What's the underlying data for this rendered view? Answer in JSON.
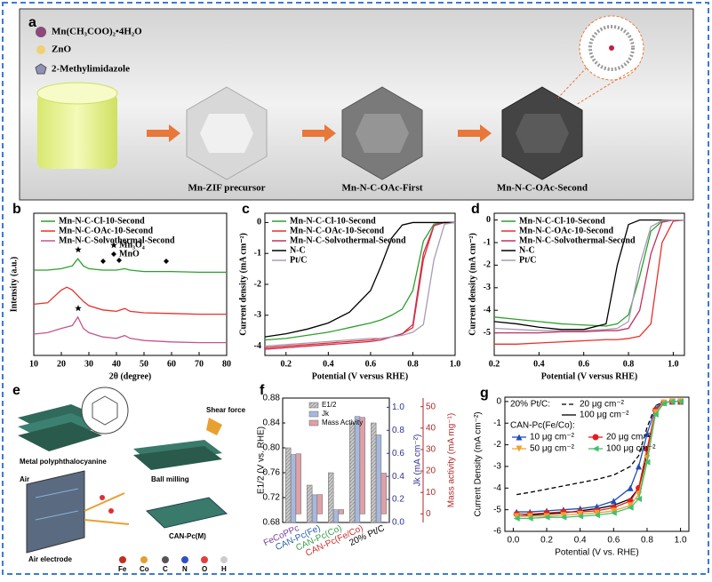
{
  "panels": {
    "a": {
      "label": "a",
      "legend": [
        "Mn(CH₃COO)₂•4H₂O",
        "ZnO",
        "2-Methylimidazole"
      ],
      "steps": [
        "Mn-ZIF precursor",
        "Mn-N-C-OAc-First",
        "Mn-N-C-OAc-Second"
      ]
    },
    "e": {
      "label": "e",
      "texts": {
        "polymer": "Metal polyphthalocyanine",
        "shear": "Shear force",
        "milling": "Ball milling",
        "air": "Air",
        "product": "CAN-Pc(M)",
        "electrode": "Air electrode"
      },
      "elements": [
        "Fe",
        "Co",
        "C",
        "N",
        "O",
        "H"
      ]
    }
  },
  "chart_data": [
    {
      "type": "line",
      "label": "b",
      "xlabel": "2θ (degree)",
      "ylabel": "Intensity (a.u.)",
      "xlim": [
        10,
        80
      ],
      "xticks": [
        10,
        20,
        30,
        40,
        50,
        60,
        70,
        80
      ],
      "ylim": [
        0,
        10
      ],
      "legend": "upper left",
      "annotations": [
        "Mn₃O₄",
        "MnO"
      ],
      "x": [
        10,
        15,
        20,
        22,
        24,
        26,
        28,
        30,
        35,
        40,
        43,
        45,
        50,
        60,
        70,
        80
      ],
      "series": [
        {
          "name": "Mn-N-C-Cl-10-Second",
          "color": "#2ca02c",
          "values": [
            6.0,
            6.0,
            6.1,
            6.2,
            6.3,
            6.8,
            6.3,
            6.1,
            6.0,
            6.0,
            6.1,
            6.0,
            5.9,
            5.9,
            5.85,
            5.85
          ]
        },
        {
          "name": "Mn-N-C-OAc-10-Second",
          "color": "#e8302a",
          "values": [
            3.6,
            3.7,
            4.6,
            4.8,
            4.6,
            4.2,
            3.8,
            3.5,
            3.2,
            3.1,
            3.3,
            3.1,
            3.0,
            2.95,
            2.9,
            2.9
          ]
        },
        {
          "name": "Mn-N-C-Solvothermal-Second",
          "color": "#c2568a",
          "values": [
            1.5,
            1.6,
            1.9,
            2.0,
            2.1,
            2.7,
            1.9,
            1.6,
            1.3,
            1.2,
            1.4,
            1.2,
            1.05,
            0.95,
            0.9,
            0.9
          ]
        }
      ]
    },
    {
      "type": "line",
      "label": "c",
      "xlabel": "Potential (V versus RHE)",
      "ylabel": "Current density (mA cm⁻²)",
      "xlim": [
        0.1,
        1.0
      ],
      "xticks": [
        0.2,
        0.4,
        0.6,
        0.8,
        {
          "value": 1,
          "label": "1.0"
        }
      ],
      "ylim": [
        -4.3,
        0.3
      ],
      "yticks": [
        0,
        -1,
        -2,
        -3,
        -4
      ],
      "legend": "upper left",
      "x": [
        0.1,
        0.2,
        0.3,
        0.4,
        0.5,
        0.6,
        0.65,
        0.7,
        0.75,
        0.8,
        0.85,
        0.9,
        0.95,
        1.0
      ],
      "series": [
        {
          "name": "Mn-N-C-Cl-10-Second",
          "color": "#2ca02c",
          "values": [
            -3.8,
            -3.75,
            -3.65,
            -3.55,
            -3.4,
            -3.25,
            -3.15,
            -3.0,
            -2.8,
            -2.2,
            -0.6,
            -0.05,
            0,
            0
          ]
        },
        {
          "name": "Mn-N-C-OAc-10-Second",
          "color": "#e8302a",
          "values": [
            -4.05,
            -4.0,
            -3.95,
            -3.9,
            -3.85,
            -3.8,
            -3.75,
            -3.7,
            -3.6,
            -3.4,
            -1.2,
            -0.1,
            0,
            0
          ]
        },
        {
          "name": "Mn-N-C-Solvothermal-Second",
          "color": "#c2305a",
          "values": [
            -4.1,
            -4.05,
            -4.0,
            -3.95,
            -3.9,
            -3.85,
            -3.8,
            -3.7,
            -3.6,
            -3.3,
            -1.0,
            -0.1,
            0,
            0
          ]
        },
        {
          "name": "N-C",
          "color": "#000000",
          "values": [
            -3.7,
            -3.6,
            -3.45,
            -3.25,
            -2.9,
            -2.2,
            -1.4,
            -0.5,
            -0.08,
            0,
            0,
            0,
            0,
            0
          ]
        },
        {
          "name": "Pt/C",
          "color": "#a89bb8",
          "values": [
            -4.0,
            -3.95,
            -3.9,
            -3.85,
            -3.8,
            -3.75,
            -3.75,
            -3.7,
            -3.65,
            -3.55,
            -3.3,
            -1.2,
            -0.05,
            0
          ]
        }
      ]
    },
    {
      "type": "line",
      "label": "d",
      "xlabel": "Potential (V versus RHE)",
      "ylabel": "Current density (mA cm⁻²)",
      "xlim": [
        0.2,
        1.05
      ],
      "xticks": [
        0.2,
        0.4,
        0.6,
        0.8,
        {
          "value": 1,
          "label": "1.0"
        }
      ],
      "ylim": [
        -6,
        0.3
      ],
      "yticks": [
        0,
        -1,
        -2,
        -3,
        -4,
        -5
      ],
      "legend": "upper left",
      "x": [
        0.2,
        0.3,
        0.4,
        0.5,
        0.6,
        0.7,
        0.75,
        0.8,
        0.85,
        0.9,
        0.95,
        1.0,
        1.05
      ],
      "series": [
        {
          "name": "Mn-N-C-Cl-10-Second",
          "color": "#2ca02c",
          "values": [
            -4.3,
            -4.4,
            -4.5,
            -4.6,
            -4.65,
            -4.7,
            -4.6,
            -4.2,
            -2.5,
            -0.5,
            -0.05,
            0,
            0
          ]
        },
        {
          "name": "Mn-N-C-OAc-10-Second",
          "color": "#e8302a",
          "values": [
            -5.5,
            -5.5,
            -5.45,
            -5.4,
            -5.35,
            -5.3,
            -5.3,
            -5.25,
            -5.15,
            -4.6,
            -1.0,
            -0.05,
            0
          ]
        },
        {
          "name": "Mn-N-C-Solvothermal-Second",
          "color": "#c2305a",
          "values": [
            -5.0,
            -5.0,
            -5.0,
            -4.95,
            -4.95,
            -4.9,
            -4.9,
            -4.8,
            -4.0,
            -1.5,
            -0.1,
            0,
            0
          ]
        },
        {
          "name": "N-C",
          "color": "#000000",
          "values": [
            -4.5,
            -4.6,
            -4.75,
            -4.85,
            -4.85,
            -4.6,
            -2.0,
            -0.2,
            0,
            0,
            0,
            0,
            0
          ]
        },
        {
          "name": "Pt/C",
          "color": "#a89bb8",
          "values": [
            -4.8,
            -4.85,
            -4.9,
            -4.9,
            -4.9,
            -4.85,
            -4.8,
            -4.5,
            -2.0,
            -0.3,
            -0.02,
            0,
            0
          ]
        }
      ]
    },
    {
      "type": "bar",
      "label": "f",
      "ylabel": "E1/2 (V vs. RHE)",
      "y2label": "Jk (mA cm⁻²)",
      "y3label": "Mass activity (mA mg⁻¹)",
      "legend": "upper left",
      "categories": [
        "FeCoPPc",
        "CAN-Pc(Fe)",
        "CAN-Pc(Co)",
        "CAN-Pc(Fe/Co)",
        "20% Pt/C"
      ],
      "category_colors": [
        "#7b3fa0",
        "#2e5fb0",
        "#3aa04a",
        "#d03030",
        "#000000"
      ],
      "ylim": [
        0.68,
        0.88
      ],
      "yticks": [
        0.68,
        0.72,
        0.76,
        {
          "value": 0.8,
          "label": "0.80"
        },
        0.84,
        0.88
      ],
      "y2lim": [
        0,
        1.08
      ],
      "y2ticks": [
        {
          "value": 0,
          "label": "0.0"
        },
        0.2,
        0.4,
        0.6,
        0.8,
        {
          "value": 1,
          "label": "1.0"
        }
      ],
      "y3lim": [
        -4,
        54
      ],
      "y3ticks": [
        0,
        10,
        20,
        30,
        40,
        50
      ],
      "series": [
        {
          "name": "E1/2",
          "color": "#b8b8b8",
          "axis": "y",
          "axis_color": "#000000",
          "values": [
            0.8,
            0.74,
            0.76,
            0.84,
            0.84
          ]
        },
        {
          "name": "Jk",
          "color": "#a8b8dc",
          "axis": "y2",
          "axis_color": "#2e3192",
          "values": [
            0.59,
            0.24,
            0.11,
            0.92,
            0.76
          ]
        },
        {
          "name": "Mass Activity",
          "color": "#e0a0a8",
          "axis": "y3",
          "axis_color": "#b02a2a",
          "values": [
            28,
            9,
            2,
            45,
            19
          ]
        }
      ]
    },
    {
      "type": "line",
      "label": "g",
      "xlabel": "Potential (V vs. RHE)",
      "ylabel": "Current Density (mA cm⁻²)",
      "xlim": [
        -0.05,
        1.05
      ],
      "xticks": [
        {
          "value": 0,
          "label": "0.0"
        },
        0.2,
        0.4,
        0.6,
        0.8,
        {
          "value": 1,
          "label": "1.0"
        }
      ],
      "ylim": [
        -6,
        0.2
      ],
      "yticks": [
        0,
        -1,
        -2,
        -3,
        -4,
        -5,
        -6
      ],
      "legend": "upper left",
      "legend_groups": [
        "20% Pt/C:",
        "CAN-Pc(Fe/Co):"
      ],
      "x": [
        0.02,
        0.1,
        0.2,
        0.3,
        0.4,
        0.5,
        0.6,
        0.7,
        0.75,
        0.8,
        0.85,
        0.9,
        0.95,
        1.0
      ],
      "series": [
        {
          "name": "20 μg cm⁻²",
          "color": "#000000",
          "dash": true,
          "values": [
            -4.3,
            -4.2,
            -4.05,
            -3.9,
            -3.75,
            -3.6,
            -3.4,
            -3.0,
            -2.5,
            -1.2,
            -0.2,
            0,
            0,
            0
          ]
        },
        {
          "name": "100 μg cm⁻²",
          "color": "#000000",
          "values": [
            -5.3,
            -5.25,
            -5.2,
            -5.15,
            -5.05,
            -4.95,
            -4.8,
            -4.5,
            -4.0,
            -2.5,
            -0.5,
            -0.05,
            0,
            0
          ]
        },
        {
          "name": "10 μg cm⁻²",
          "color": "#1f4fb4",
          "marker": "triangle-up",
          "values": [
            -5.1,
            -5.1,
            -5.05,
            -5.0,
            -4.95,
            -4.85,
            -4.6,
            -4.0,
            -3.0,
            -1.5,
            -0.3,
            -0.05,
            0,
            0
          ]
        },
        {
          "name": "20 μg cm⁻²",
          "color": "#e02020",
          "marker": "circle",
          "values": [
            -5.2,
            -5.2,
            -5.15,
            -5.1,
            -5.1,
            -5.05,
            -4.9,
            -4.6,
            -4.0,
            -2.2,
            -0.4,
            -0.05,
            0,
            0
          ]
        },
        {
          "name": "50 μg cm⁻²",
          "color": "#f0a030",
          "marker": "triangle-down",
          "values": [
            -5.3,
            -5.3,
            -5.3,
            -5.25,
            -5.2,
            -5.15,
            -5.05,
            -4.8,
            -4.3,
            -2.6,
            -0.5,
            -0.05,
            0,
            0
          ]
        },
        {
          "name": "100 μg cm⁻²",
          "color": "#40c070",
          "marker": "triangle-left",
          "values": [
            -5.4,
            -5.4,
            -5.35,
            -5.35,
            -5.3,
            -5.25,
            -5.15,
            -4.9,
            -4.5,
            -2.8,
            -0.6,
            -0.08,
            0,
            0
          ]
        }
      ]
    }
  ]
}
